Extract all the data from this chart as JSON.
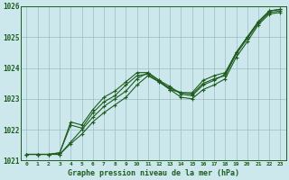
{
  "title": "Graphe pression niveau de la mer (hPa)",
  "bg_color": "#cce8ec",
  "grid_color": "#9bbfc4",
  "line_color": "#1e5c1e",
  "x_values": [
    0,
    1,
    2,
    3,
    4,
    5,
    6,
    7,
    8,
    9,
    10,
    11,
    12,
    13,
    14,
    15,
    16,
    17,
    18,
    19,
    20,
    21,
    22,
    23
  ],
  "series1": [
    1021.2,
    1021.2,
    1021.2,
    1021.2,
    1021.55,
    1021.85,
    1022.25,
    1022.55,
    1022.8,
    1023.05,
    1023.45,
    1023.75,
    1023.55,
    1023.3,
    1023.05,
    1023.0,
    1023.3,
    1023.45,
    1023.65,
    1024.35,
    1024.85,
    1025.4,
    1025.75,
    1025.8
  ],
  "series2": [
    1021.2,
    1021.2,
    1021.2,
    1021.2,
    1021.6,
    1022.0,
    1022.4,
    1022.75,
    1023.0,
    1023.25,
    1023.65,
    1023.85,
    1023.6,
    1023.4,
    1023.15,
    1023.1,
    1023.45,
    1023.6,
    1023.8,
    1024.5,
    1025.0,
    1025.5,
    1025.85,
    1025.9
  ],
  "series3": [
    1021.2,
    1021.2,
    1021.2,
    1021.25,
    1022.15,
    1022.05,
    1022.55,
    1022.9,
    1023.1,
    1023.45,
    1023.75,
    1023.8,
    1023.55,
    1023.35,
    1023.2,
    1023.15,
    1023.5,
    1023.65,
    1023.75,
    1024.45,
    1024.95,
    1025.45,
    1025.8,
    1025.85
  ],
  "series4": [
    1021.2,
    1021.2,
    1021.2,
    1021.25,
    1022.25,
    1022.15,
    1022.65,
    1023.05,
    1023.25,
    1023.55,
    1023.85,
    1023.85,
    1023.6,
    1023.3,
    1023.2,
    1023.2,
    1023.6,
    1023.75,
    1023.85,
    1024.5,
    1025.0,
    1025.5,
    1025.85,
    1025.9
  ],
  "ylim": [
    1021.0,
    1026.0
  ],
  "yticks": [
    1021,
    1022,
    1023,
    1024,
    1025,
    1026
  ],
  "xlim": [
    -0.5,
    23.5
  ],
  "marker_size": 2.5,
  "line_width": 0.8
}
